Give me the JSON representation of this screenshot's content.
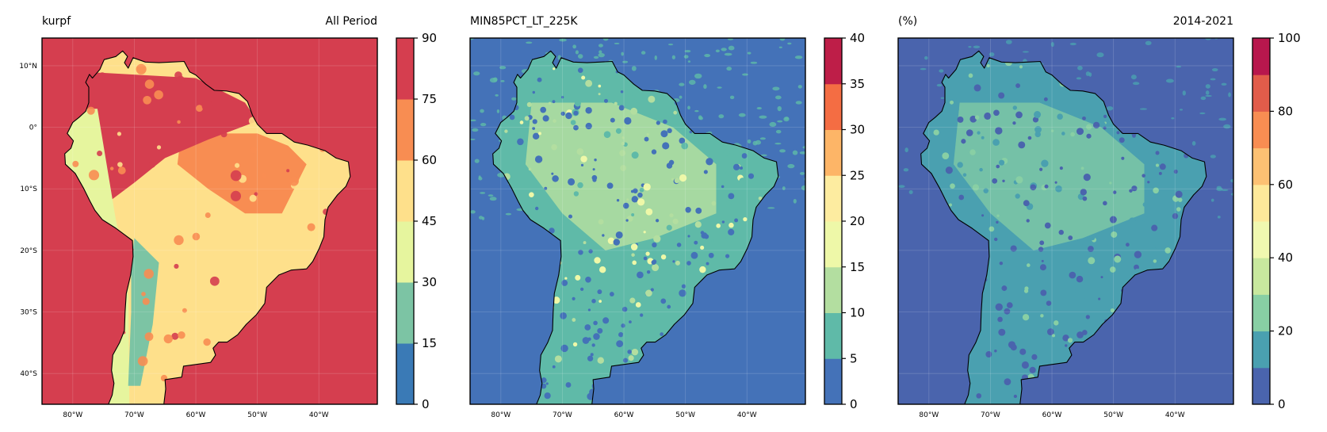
{
  "panels": [
    {
      "id": "p1",
      "title_left": "kurpf",
      "title_right": "All Period",
      "colorbar": {
        "ticks": [
          "0",
          "15",
          "30",
          "45",
          "60",
          "75",
          "90"
        ],
        "colors": [
          "#3a7ab6",
          "#7cc4a4",
          "#e6f59e",
          "#fee08b",
          "#f88d52",
          "#d53e4f"
        ]
      },
      "ocean_color": "#d53e4f",
      "land_regions": [
        {
          "name": "amazon-andes-band",
          "color": "#d53e4f"
        },
        {
          "name": "northeast-brazil",
          "color": "#f88d52"
        },
        {
          "name": "central-plateau",
          "color": "#fee08b"
        },
        {
          "name": "pacific-coast",
          "color": "#e6f59e"
        },
        {
          "name": "altiplano",
          "color": "#7cc4a4"
        }
      ]
    },
    {
      "id": "p2",
      "title_left": "MIN85PCT_LT_225K",
      "title_right": "",
      "colorbar": {
        "ticks": [
          "0",
          "5",
          "10",
          "15",
          "20",
          "25",
          "30",
          "35",
          "40"
        ],
        "colors": [
          "#4472b8",
          "#5fbaa8",
          "#b3dea0",
          "#eef8a8",
          "#fdeca0",
          "#fdb567",
          "#f46d43",
          "#be1e48"
        ]
      },
      "ocean_color": "#4472b8",
      "land_regions": [
        {
          "name": "land-base",
          "color": "#5fbaa8"
        },
        {
          "name": "amazon-core",
          "color": "#b3dea0"
        },
        {
          "name": "hotspots",
          "color": "#eef8a8"
        }
      ]
    },
    {
      "id": "p3",
      "title_left": "(%)",
      "title_right": "2014-2021",
      "colorbar": {
        "ticks": [
          "0",
          "20",
          "40",
          "60",
          "80",
          "100"
        ],
        "colors": [
          "#4a64ad",
          "#4aa0b0",
          "#88cfa4",
          "#c8e89e",
          "#f0f8b0",
          "#fee99a",
          "#fdc173",
          "#f88d52",
          "#e25c4a",
          "#b8174d"
        ]
      },
      "ocean_color": "#4a64ad",
      "land_regions": [
        {
          "name": "land-base",
          "color": "#4aa0b0"
        },
        {
          "name": "amazon-core",
          "color": "#88cfa4"
        }
      ]
    }
  ],
  "axes": {
    "lat_labels": [
      "10°N",
      "0°",
      "10°S",
      "20°S",
      "30°S",
      "40°S"
    ],
    "lat_values": [
      10,
      0,
      -10,
      -20,
      -30,
      -40
    ],
    "lon_labels": [
      "80°W",
      "70°W",
      "60°W",
      "50°W",
      "40°W"
    ],
    "lon_values": [
      -80,
      -70,
      -60,
      -50,
      -40
    ],
    "extent": {
      "lon_min": -85,
      "lon_max": -30.5,
      "lat_min": -45,
      "lat_max": 14.5
    }
  }
}
